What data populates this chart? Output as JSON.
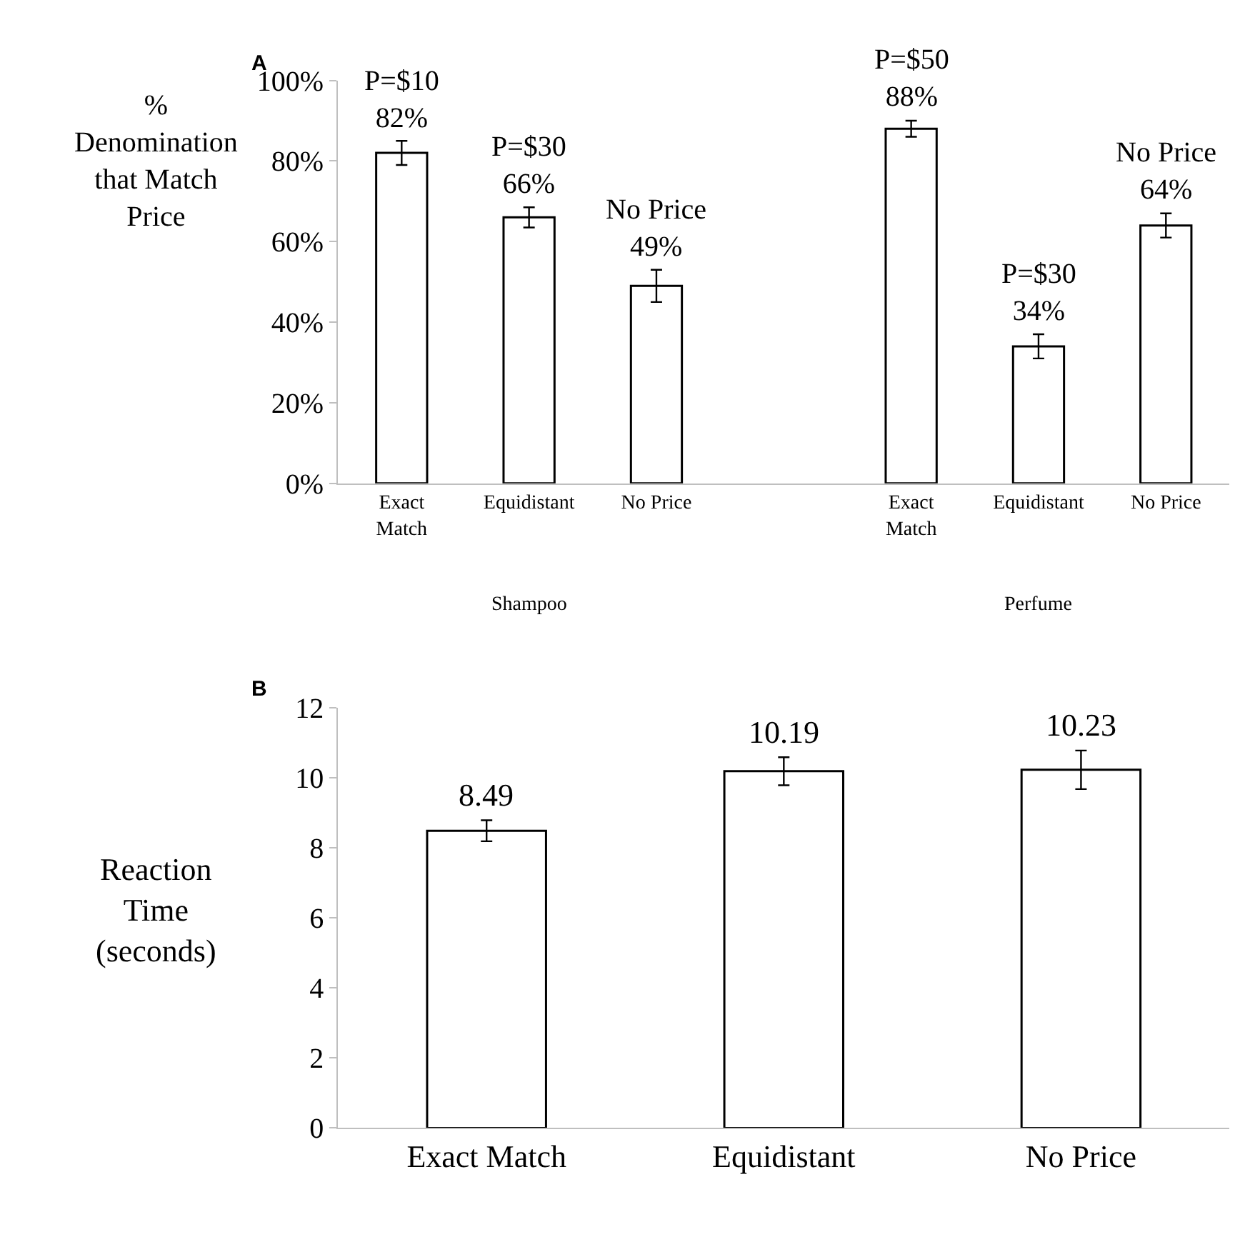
{
  "chart_data": [
    {
      "type": "bar",
      "title": "A",
      "ylabel": "%\nDenomination\nthat Match\nPrice",
      "categories": [
        "Exact\nMatch",
        "Equidistant",
        "No Price",
        null,
        "Exact\nMatch",
        "Equidistant",
        "No Price"
      ],
      "values": [
        82,
        66,
        49,
        null,
        88,
        34,
        64
      ],
      "errors": [
        3,
        2.5,
        4,
        null,
        2,
        3,
        3
      ],
      "value_labels": [
        "P=$10\n82%",
        "P=$30\n66%",
        "No Price\n49%",
        null,
        "P=$50\n88%",
        "P=$30\n34%",
        "No Price\n64%"
      ],
      "color": "#ffffff",
      "ylim": [
        0,
        100
      ],
      "yticks": [
        {
          "value": 0,
          "label": "0%"
        },
        {
          "value": 20,
          "label": "20%"
        },
        {
          "value": 40,
          "label": "40%"
        },
        {
          "value": 60,
          "label": "60%"
        },
        {
          "value": 80,
          "label": "80%"
        },
        {
          "value": 100,
          "label": "100%"
        }
      ],
      "annotations": [
        "Shampoo",
        "Perfume"
      ]
    },
    {
      "type": "bar",
      "title": "B",
      "ylabel": "Reaction\nTime\n(seconds)",
      "categories": [
        "Exact Match",
        "Equidistant",
        "No Price"
      ],
      "values": [
        8.49,
        10.19,
        10.23
      ],
      "errors": [
        0.3,
        0.4,
        0.55
      ],
      "data_labels": true,
      "color": "#ffffff",
      "ylim": [
        0,
        12
      ],
      "yticks": [
        0,
        2,
        4,
        6,
        8,
        10,
        12
      ]
    }
  ]
}
